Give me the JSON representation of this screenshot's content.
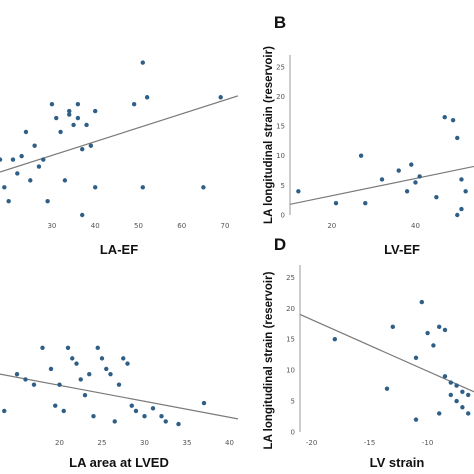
{
  "colors": {
    "point": "#2f5f86",
    "fit_line": "#7a7a7a",
    "axis": "#9a9a9a"
  },
  "chart_data": [
    {
      "panel": "A",
      "type": "scatter",
      "title": "",
      "xlabel": "LA-EF",
      "ylabel": "",
      "xlim": [
        18,
        73
      ],
      "ylim": [
        0,
        27
      ],
      "x_ticks": [
        30,
        40,
        50,
        60,
        70
      ],
      "y_ticks": [],
      "show_panel_letter": false,
      "grid": false,
      "points": [
        {
          "x": 18,
          "y": 8
        },
        {
          "x": 19,
          "y": 4
        },
        {
          "x": 20,
          "y": 2
        },
        {
          "x": 21,
          "y": 8
        },
        {
          "x": 22,
          "y": 6
        },
        {
          "x": 23,
          "y": 8.5
        },
        {
          "x": 24,
          "y": 12
        },
        {
          "x": 25,
          "y": 5
        },
        {
          "x": 26,
          "y": 10
        },
        {
          "x": 27,
          "y": 7
        },
        {
          "x": 28,
          "y": 8
        },
        {
          "x": 29,
          "y": 2
        },
        {
          "x": 30,
          "y": 16
        },
        {
          "x": 31,
          "y": 14
        },
        {
          "x": 32,
          "y": 12
        },
        {
          "x": 33,
          "y": 5
        },
        {
          "x": 34,
          "y": 15
        },
        {
          "x": 34,
          "y": 14.5
        },
        {
          "x": 35,
          "y": 13
        },
        {
          "x": 36,
          "y": 16
        },
        {
          "x": 36,
          "y": 14
        },
        {
          "x": 37,
          "y": 9.5
        },
        {
          "x": 38,
          "y": 13
        },
        {
          "x": 39,
          "y": 10
        },
        {
          "x": 40,
          "y": 15
        },
        {
          "x": 40,
          "y": 4
        },
        {
          "x": 37,
          "y": 0
        },
        {
          "x": 49,
          "y": 16
        },
        {
          "x": 51,
          "y": 22
        },
        {
          "x": 52,
          "y": 17
        },
        {
          "x": 51,
          "y": 4
        },
        {
          "x": 65,
          "y": 4
        },
        {
          "x": 69,
          "y": 17
        }
      ],
      "fit_line": {
        "x": [
          18,
          73
        ],
        "y": [
          6.2,
          17.2
        ]
      }
    },
    {
      "panel": "B",
      "type": "scatter",
      "title": "",
      "xlabel": "LV-EF",
      "ylabel": "LA longitudinal strain (reservoir)",
      "xlim": [
        10,
        54
      ],
      "ylim": [
        0,
        27
      ],
      "x_ticks": [
        20,
        40
      ],
      "y_ticks": [
        0,
        5,
        10,
        15,
        20,
        25
      ],
      "show_panel_letter": true,
      "grid": false,
      "points": [
        {
          "x": 12,
          "y": 4
        },
        {
          "x": 21,
          "y": 2
        },
        {
          "x": 27,
          "y": 10
        },
        {
          "x": 28,
          "y": 2
        },
        {
          "x": 32,
          "y": 6
        },
        {
          "x": 36,
          "y": 7.5
        },
        {
          "x": 38,
          "y": 4
        },
        {
          "x": 39,
          "y": 8.5
        },
        {
          "x": 40,
          "y": 5.5
        },
        {
          "x": 41,
          "y": 6.5
        },
        {
          "x": 45,
          "y": 3
        },
        {
          "x": 47,
          "y": 16.5
        },
        {
          "x": 49,
          "y": 16
        },
        {
          "x": 50,
          "y": 13
        },
        {
          "x": 51,
          "y": 6
        },
        {
          "x": 52,
          "y": 4
        },
        {
          "x": 51,
          "y": 1
        },
        {
          "x": 50,
          "y": 0
        }
      ],
      "fit_line": {
        "x": [
          10,
          54
        ],
        "y": [
          1.8,
          8.2
        ]
      }
    },
    {
      "panel": "C",
      "type": "scatter",
      "title": "",
      "xlabel": "LA area at LVED",
      "ylabel": "",
      "xlim": [
        13,
        41
      ],
      "ylim": [
        0,
        27
      ],
      "x_ticks": [
        20,
        25,
        30,
        35,
        40
      ],
      "y_ticks": [],
      "show_panel_letter": false,
      "grid": false,
      "points": [
        {
          "x": 13.5,
          "y": 4
        },
        {
          "x": 15,
          "y": 11
        },
        {
          "x": 16,
          "y": 10
        },
        {
          "x": 17,
          "y": 9
        },
        {
          "x": 18,
          "y": 16
        },
        {
          "x": 19,
          "y": 12
        },
        {
          "x": 19.5,
          "y": 5
        },
        {
          "x": 20,
          "y": 9
        },
        {
          "x": 20.5,
          "y": 4
        },
        {
          "x": 21,
          "y": 16
        },
        {
          "x": 21.5,
          "y": 14
        },
        {
          "x": 22,
          "y": 13
        },
        {
          "x": 22.5,
          "y": 10
        },
        {
          "x": 23,
          "y": 7
        },
        {
          "x": 23.5,
          "y": 11
        },
        {
          "x": 24,
          "y": 3
        },
        {
          "x": 24.5,
          "y": 16
        },
        {
          "x": 25,
          "y": 14
        },
        {
          "x": 25.5,
          "y": 12
        },
        {
          "x": 26,
          "y": 11
        },
        {
          "x": 26.5,
          "y": 2
        },
        {
          "x": 27,
          "y": 9
        },
        {
          "x": 27.5,
          "y": 14
        },
        {
          "x": 28,
          "y": 13
        },
        {
          "x": 28.5,
          "y": 5
        },
        {
          "x": 29,
          "y": 4
        },
        {
          "x": 30,
          "y": 3
        },
        {
          "x": 31,
          "y": 4.5
        },
        {
          "x": 32,
          "y": 3
        },
        {
          "x": 32.5,
          "y": 2
        },
        {
          "x": 34,
          "y": 1.5
        },
        {
          "x": 37,
          "y": 5.5
        }
      ],
      "fit_line": {
        "x": [
          13,
          41
        ],
        "y": [
          11,
          2.5
        ]
      }
    },
    {
      "panel": "D",
      "type": "scatter",
      "title": "",
      "xlabel": "LV strain",
      "ylabel": "LA longitudinal strain (reservoir)",
      "xlim": [
        -21,
        -6
      ],
      "ylim": [
        0,
        27
      ],
      "x_ticks": [
        -20,
        -15,
        -10
      ],
      "y_ticks": [
        0,
        5,
        10,
        15,
        20,
        25
      ],
      "show_panel_letter": true,
      "grid": false,
      "points": [
        {
          "x": -18,
          "y": 15
        },
        {
          "x": -13,
          "y": 17
        },
        {
          "x": -13.5,
          "y": 7
        },
        {
          "x": -11,
          "y": 12
        },
        {
          "x": -10.5,
          "y": 21
        },
        {
          "x": -10,
          "y": 16
        },
        {
          "x": -9.5,
          "y": 14
        },
        {
          "x": -9,
          "y": 17
        },
        {
          "x": -8.5,
          "y": 16.5
        },
        {
          "x": -8.5,
          "y": 9
        },
        {
          "x": -8,
          "y": 8
        },
        {
          "x": -8,
          "y": 6
        },
        {
          "x": -7.5,
          "y": 7.5
        },
        {
          "x": -7.5,
          "y": 5
        },
        {
          "x": -7,
          "y": 6.5
        },
        {
          "x": -7,
          "y": 4
        },
        {
          "x": -6.5,
          "y": 6
        },
        {
          "x": -6.5,
          "y": 3
        },
        {
          "x": -11,
          "y": 2
        },
        {
          "x": -9,
          "y": 3
        }
      ],
      "fit_line": {
        "x": [
          -21,
          -6
        ],
        "y": [
          19,
          6.5
        ]
      }
    }
  ]
}
